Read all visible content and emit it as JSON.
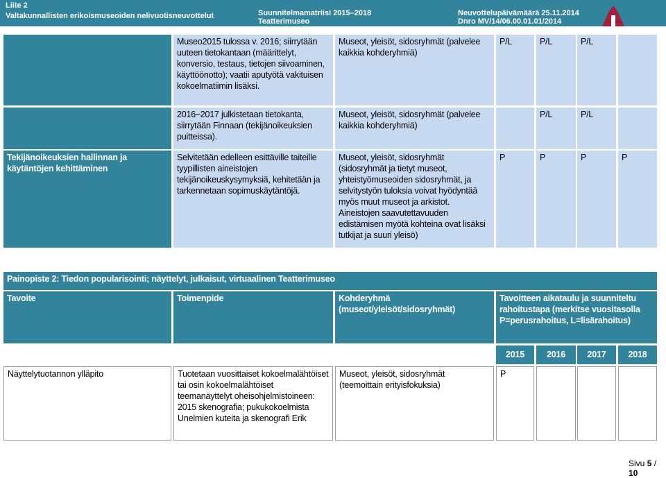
{
  "header": {
    "left": [
      "Liite 2",
      "Valtakunnallisten erikoismuseoiden nelivuotisneuvottelut"
    ],
    "center": [
      "Suunnitelmamatriisi 2015–2018",
      "Teatterimuseo"
    ],
    "right": [
      "Neuvottelupäivämäärä 25.11.2014",
      "Dnro MV/14/06.00.01.01/2014"
    ]
  },
  "table1": {
    "rows": [
      {
        "goal": null,
        "action": "Museo2015 tulossa v. 2016; siirrytään uuteen tietokantaan (määrittelyt, konversio, testaus, tietojen siivoaminen, käyttöönotto); vaatii aputyötä vakituisen kokoelmatiimin lisäksi.",
        "target": "Museot, yleisöt, sidosryhmät (palvelee kaikkia kohderyhmiä)",
        "years": [
          "P/L",
          "P/L",
          "P/L",
          null
        ]
      },
      {
        "goal": null,
        "action": "2016–2017 julkistetaan tietokanta, siirrytään Finnaan (tekijänoikeuksien puitteissa).",
        "target": "Museot, yleisöt, sidosryhmät (palvelee kaikkia kohderyhmiä)",
        "years": [
          null,
          "P/L",
          "P/L",
          null
        ]
      },
      {
        "goal": "Tekijänoikeuksien hallinnan ja käytäntöjen kehittäminen",
        "action": "Selvitetään edelleen esittäville taiteille tyypillisten aineistojen tekijänoikeuskysymyksiä, kehitetään ja tarkennetaan sopimuskäytäntöjä.",
        "target": "Museot, yleisöt, sidosryhmät (sidosryhmät ja tietyt museot, yhteistyömuseoiden sidosryhmät, ja selvitystyön tuloksia voivat hyödyntää myös muut museot ja arkistot. Aineistojen saavutettavuuden edistämisen myötä kohteina ovat lisäksi tutkijat ja suuri yleisö)",
        "years": [
          "P",
          "P",
          "P",
          "P"
        ]
      }
    ]
  },
  "table2": {
    "section": "Painopiste 2: Tiedon popularisointi; näyttelyt, julkaisut, virtuaalinen Teatterimuseo",
    "columns": [
      "Tavoite",
      "Toimenpide",
      "Kohderyhmä (museot/yleisöt/sidosryhmät)",
      "Tavoitteen aikataulu ja suunniteltu rahoitustapa (merkitse vuositasolla P=perusrahoitus, L=lisärahoitus)"
    ],
    "years": [
      "2015",
      "2016",
      "2017",
      "2018"
    ],
    "rows": [
      {
        "goal": "Näyttelytuotannon ylläpito",
        "action": "Tuotetaan vuosittaiset kokoelmalähtöiset tai osin kokoelmalähtöiset teemanäyttelyt oheisohjelmistoineen: 2015 skenografia; pukukokoelmista Unelmien kuteita ja skenografi Erik",
        "target": "Museot, yleisöt, sidosryhmät (teemoittain erityisfokuksia)",
        "years": [
          "P",
          null,
          null,
          null
        ]
      }
    ]
  },
  "footer": {
    "label": "Sivu",
    "page": "5",
    "separator": "/",
    "total": "10"
  }
}
